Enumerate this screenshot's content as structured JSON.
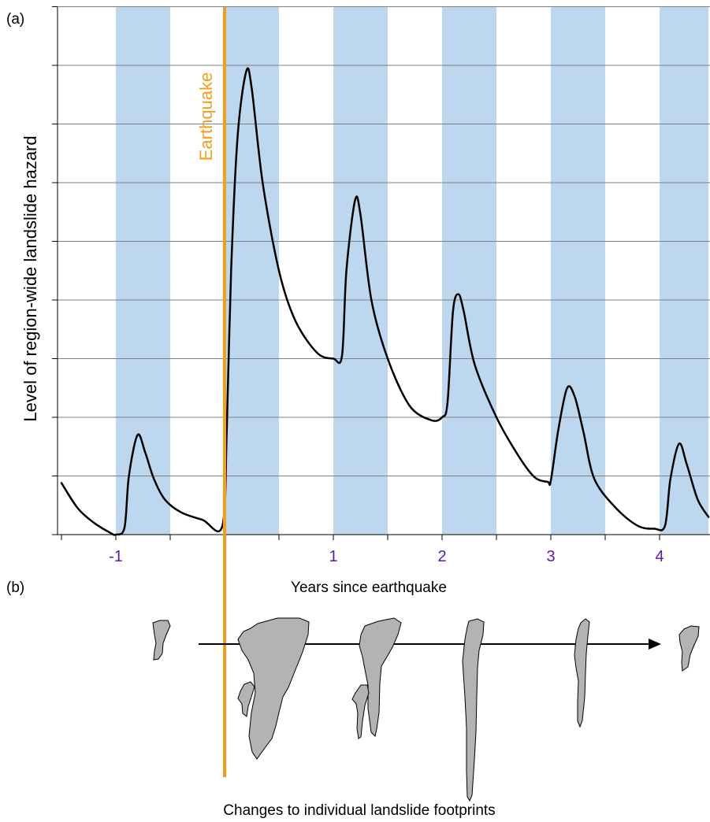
{
  "panel_a_label": "(a)",
  "panel_b_label": "(b)",
  "earthquake_label": "Earthquake",
  "caption_b": "Changes to individual landslide footprints",
  "colors": {
    "wet_season_band": "#bdd7ee",
    "earthquake_line": "#f79c1d",
    "tick_labels": "#5b1aa5",
    "curve": "#000000",
    "footprint_fill": "#b3b3b3"
  },
  "chart_data": {
    "type": "line",
    "title": "",
    "xlabel": "Years since earthquake",
    "ylabel": "Level of region-wide landslide hazard",
    "xlim": [
      -1.5,
      4.45
    ],
    "ylim": [
      0,
      9
    ],
    "x_ticks": [
      -1,
      1,
      2,
      3,
      4
    ],
    "x_tick_labels": [
      "-1",
      "1",
      "2",
      "3",
      "4"
    ],
    "y_grid_lines": [
      1,
      2,
      3,
      4,
      5,
      6,
      7,
      8,
      9
    ],
    "grid": true,
    "earthquake_x": 0,
    "shaded_wet_seasons": [
      [
        -1.0,
        -0.5
      ],
      [
        0.0,
        0.5
      ],
      [
        1.0,
        1.5
      ],
      [
        2.0,
        2.5
      ],
      [
        3.0,
        3.5
      ],
      [
        4.0,
        4.45
      ]
    ],
    "series": [
      {
        "x": [
          -1.5,
          -1.35,
          -1.2,
          -1.05,
          -1.0,
          -0.92,
          -0.88,
          -0.8,
          -0.73,
          -0.65,
          -0.55,
          -0.4,
          -0.2,
          -0.02,
          0.02,
          0.06,
          0.12,
          0.2,
          0.25,
          0.35,
          0.5,
          0.65,
          0.85,
          1.0,
          1.08,
          1.12,
          1.2,
          1.25,
          1.35,
          1.5,
          1.7,
          1.9,
          2.0,
          2.05,
          2.1,
          2.15,
          2.2,
          2.3,
          2.5,
          2.7,
          2.85,
          2.97,
          3.0,
          3.07,
          3.15,
          3.22,
          3.3,
          3.4,
          3.6,
          3.8,
          3.95,
          4.05,
          4.1,
          4.18,
          4.25,
          4.35,
          4.45
        ],
        "y": [
          0.88,
          0.45,
          0.2,
          0.03,
          0.0,
          0.12,
          1.0,
          1.7,
          1.4,
          0.95,
          0.6,
          0.38,
          0.25,
          0.15,
          1.8,
          4.5,
          6.8,
          7.9,
          7.6,
          6.0,
          4.5,
          3.65,
          3.1,
          3.0,
          3.05,
          4.5,
          5.7,
          5.45,
          4.0,
          3.0,
          2.2,
          1.95,
          2.0,
          2.25,
          3.8,
          4.1,
          3.8,
          2.9,
          2.0,
          1.35,
          0.98,
          0.9,
          0.92,
          1.8,
          2.5,
          2.35,
          1.75,
          0.95,
          0.45,
          0.15,
          0.1,
          0.15,
          0.95,
          1.55,
          1.2,
          0.6,
          0.3
        ]
      }
    ]
  }
}
